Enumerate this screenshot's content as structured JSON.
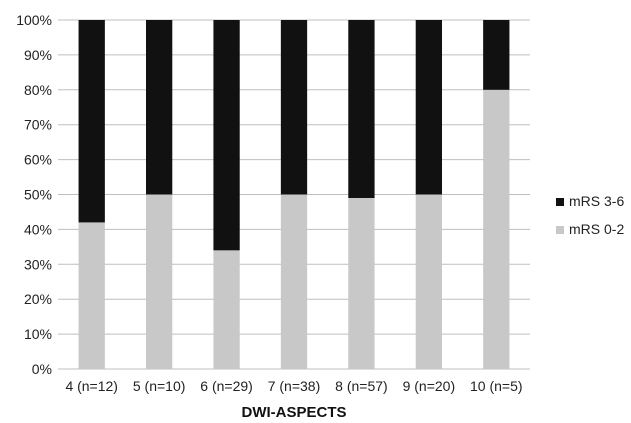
{
  "chart_data": {
    "type": "bar",
    "stacked": true,
    "percent": true,
    "title": "",
    "xlabel": "DWI-ASPECTS",
    "ylabel": "",
    "ylim": [
      0,
      100
    ],
    "yticks": [
      "0%",
      "10%",
      "20%",
      "30%",
      "40%",
      "50%",
      "60%",
      "70%",
      "80%",
      "90%",
      "100%"
    ],
    "categories": [
      "4 (n=12)",
      "5 (n=10)",
      "6 (n=29)",
      "7 (n=38)",
      "8 (n=57)",
      "9 (n=20)",
      "10 (n=5)"
    ],
    "series": [
      {
        "name": "mRS 0-2",
        "color": "#c8c8c8",
        "values": [
          42,
          50,
          34,
          50,
          49,
          50,
          80
        ]
      },
      {
        "name": "mRS 3-6",
        "color": "#111111",
        "values": [
          58,
          50,
          66,
          50,
          51,
          50,
          20
        ]
      }
    ],
    "legend": {
      "placement": "right",
      "entries": [
        "mRS 3-6",
        "mRS 0-2"
      ]
    },
    "grid": true,
    "grid_color": "#bfbfbf"
  }
}
